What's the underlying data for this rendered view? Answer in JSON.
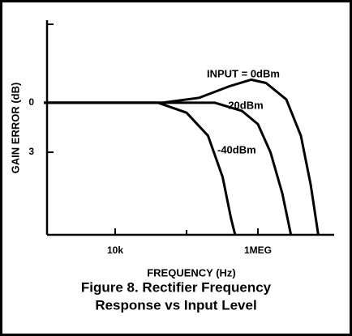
{
  "chart_data": {
    "type": "line",
    "title": [
      "Figure 8.  Rectifier Frequency",
      "Response vs Input Level"
    ],
    "x_label": "FREQUENCY (Hz)",
    "y_label": "GAIN ERROR (dB)",
    "xscale": "log",
    "xlim": [
      1000,
      10000000
    ],
    "xticks": [
      {
        "value": 10000,
        "label": "10k"
      },
      {
        "value": 1000000,
        "label": "1MEG"
      }
    ],
    "xminorticks": [
      100000
    ],
    "ylim": [
      8,
      -5
    ],
    "yticks": [
      0,
      3
    ],
    "series": [
      {
        "name": "INPUT = 0dBm",
        "color": "#000000",
        "x": [
          1000,
          46000,
          150000,
          400000,
          800000,
          1300000,
          2500000,
          4000000,
          5500000,
          7000000
        ],
        "values": [
          0,
          0,
          -0.3,
          -1.0,
          -1.4,
          -1.2,
          -0.2,
          2,
          5,
          8
        ]
      },
      {
        "name": "-20dBm",
        "color": "#000000",
        "x": [
          1000,
          250000,
          600000,
          1000000,
          1500000,
          2200000,
          2900000
        ],
        "values": [
          0,
          0,
          0.5,
          1.3,
          3,
          5.5,
          8
        ]
      },
      {
        "name": "-40dBm",
        "color": "#000000",
        "x": [
          1000,
          40000,
          100000,
          200000,
          320000,
          420000,
          480000
        ],
        "values": [
          0,
          0,
          0.6,
          2,
          4.5,
          7,
          8
        ]
      }
    ]
  }
}
